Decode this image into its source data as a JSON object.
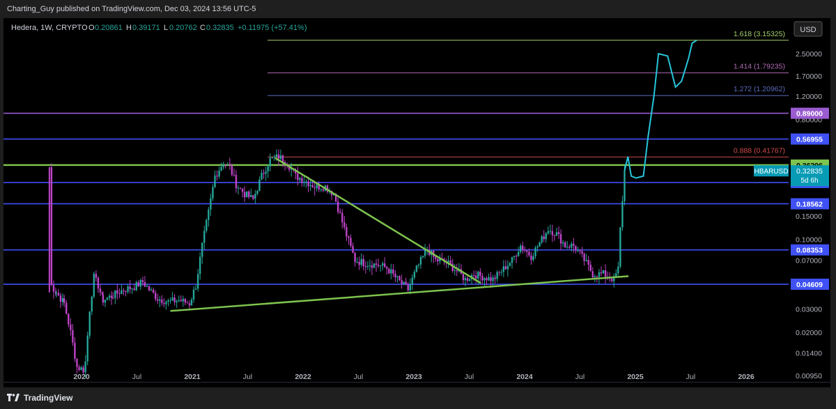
{
  "header": {
    "publish_line": "Charting_Guy published on TradingView.com, Dec 03, 2024 13:56 UTC-5"
  },
  "legend": {
    "symbol": "Hedera, 1W, CRYPTO",
    "o_label": "O",
    "o_value": "0.20861",
    "h_label": "H",
    "h_value": "0.39171",
    "l_label": "L",
    "l_value": "0.20762",
    "c_label": "C",
    "c_value": "0.32835",
    "change": "+0.11975 (+57.41%)"
  },
  "currency": "USD",
  "footer": {
    "brand": "TradingView"
  },
  "colors": {
    "green": "#26a69a",
    "magenta": "#c044c8",
    "cyan": "#26c6da",
    "trendline": "#7ec34e",
    "level_blue": "#3f51f5",
    "level_purple": "#9a5cd0",
    "fib_green": "#a5d06b",
    "fib_red": "#d04a4a",
    "price_tag": "#089bb5"
  },
  "chart_data": {
    "type": "candlestick",
    "symbol": "HBARUSD",
    "interval": "1W",
    "scale": "log",
    "ylim": [
      0.0085,
      4.2
    ],
    "x_ticks": [
      "2020",
      "Jul",
      "2021",
      "Jul",
      "2022",
      "Jul",
      "2023",
      "Jul",
      "2024",
      "Jul",
      "2025",
      "Jul",
      "2026"
    ],
    "y_ticks": [
      2.5,
      1.7,
      1.2,
      0.8,
      0.15,
      0.1,
      0.07,
      0.03,
      0.02,
      0.014,
      0.0095
    ],
    "y_tick_labels": [
      "2.50000",
      "1.70000",
      "1.20000",
      "0.80000",
      "0.15000",
      "0.10000",
      "0.07000",
      "0.03000",
      "0.02000",
      "0.01400",
      "0.00950"
    ],
    "last_price": {
      "symbol": "HBARUSD",
      "value": "0.32835",
      "countdown": "5d 6h"
    },
    "horizontal_levels": [
      {
        "value": 0.89,
        "label": "0.89000",
        "style": "purple"
      },
      {
        "value": 0.56955,
        "label": "0.56955",
        "style": "blue"
      },
      {
        "value": 0.36296,
        "label": "0.36296",
        "style": "green"
      },
      {
        "value": 0.26847,
        "label": "0.26847",
        "style": "blue"
      },
      {
        "value": 0.18562,
        "label": "0.18562",
        "style": "blue"
      },
      {
        "value": 0.08353,
        "label": "0.08353",
        "style": "blue"
      },
      {
        "value": 0.04609,
        "label": "0.04609",
        "style": "blue"
      }
    ],
    "fib_levels": [
      {
        "value": 3.15325,
        "label": "1.618 (3.15325)",
        "color": "fib_green"
      },
      {
        "value": 1.79235,
        "label": "1.414 (1.79235)",
        "color": "fib_purple"
      },
      {
        "value": 1.20962,
        "label": "1.272 (1.20962)",
        "color": "fib_blue"
      },
      {
        "value": 0.41767,
        "label": "0.888 (0.41767)",
        "color": "fib_red"
      }
    ],
    "trendlines": [
      {
        "from": [
          "2020-10-20",
          0.029
        ],
        "to": [
          "2024-12-09",
          0.053
        ],
        "label": ""
      },
      {
        "from": [
          "2021-10-01",
          0.41
        ],
        "to": [
          "2023-08-10",
          0.047
        ],
        "label": ""
      }
    ],
    "price_path": [
      [
        "2019-09-17",
        0.35
      ],
      [
        "2019-09-24",
        0.045
      ],
      [
        "2019-10-10",
        0.04
      ],
      [
        "2019-11-05",
        0.033
      ],
      [
        "2019-11-26",
        0.02
      ],
      [
        "2019-12-17",
        0.011
      ],
      [
        "2020-01-07",
        0.0105
      ],
      [
        "2020-01-14",
        0.012
      ],
      [
        "2020-01-28",
        0.03
      ],
      [
        "2020-02-11",
        0.052
      ],
      [
        "2020-02-25",
        0.045
      ],
      [
        "2020-03-12",
        0.035
      ],
      [
        "2020-04-14",
        0.038
      ],
      [
        "2020-05-19",
        0.042
      ],
      [
        "2020-06-23",
        0.044
      ],
      [
        "2020-07-21",
        0.048
      ],
      [
        "2020-08-11",
        0.042
      ],
      [
        "2020-09-08",
        0.036
      ],
      [
        "2020-10-13",
        0.034
      ],
      [
        "2020-11-17",
        0.035
      ],
      [
        "2020-12-22",
        0.033
      ],
      [
        "2021-01-12",
        0.045
      ],
      [
        "2021-02-02",
        0.09
      ],
      [
        "2021-02-23",
        0.16
      ],
      [
        "2021-03-16",
        0.3
      ],
      [
        "2021-04-13",
        0.38
      ],
      [
        "2021-05-04",
        0.35
      ],
      [
        "2021-05-25",
        0.26
      ],
      [
        "2021-06-22",
        0.22
      ],
      [
        "2021-07-20",
        0.2
      ],
      [
        "2021-08-17",
        0.3
      ],
      [
        "2021-09-14",
        0.4
      ],
      [
        "2021-10-12",
        0.42
      ],
      [
        "2021-11-09",
        0.38
      ],
      [
        "2021-12-07",
        0.3
      ],
      [
        "2022-01-04",
        0.28
      ],
      [
        "2022-02-08",
        0.25
      ],
      [
        "2022-03-15",
        0.25
      ],
      [
        "2022-04-12",
        0.22
      ],
      [
        "2022-05-17",
        0.12
      ],
      [
        "2022-06-21",
        0.07
      ],
      [
        "2022-07-26",
        0.066
      ],
      [
        "2022-08-30",
        0.065
      ],
      [
        "2022-10-04",
        0.061
      ],
      [
        "2022-11-08",
        0.05
      ],
      [
        "2022-12-13",
        0.042
      ],
      [
        "2023-01-10",
        0.06
      ],
      [
        "2023-02-14",
        0.085
      ],
      [
        "2023-03-14",
        0.07
      ],
      [
        "2023-04-18",
        0.068
      ],
      [
        "2023-05-23",
        0.058
      ],
      [
        "2023-06-20",
        0.05
      ],
      [
        "2023-07-18",
        0.055
      ],
      [
        "2023-08-22",
        0.052
      ],
      [
        "2023-09-19",
        0.05
      ],
      [
        "2023-10-24",
        0.06
      ],
      [
        "2023-11-21",
        0.07
      ],
      [
        "2023-12-19",
        0.09
      ],
      [
        "2024-01-23",
        0.075
      ],
      [
        "2024-02-27",
        0.1
      ],
      [
        "2024-03-19",
        0.12
      ],
      [
        "2024-04-16",
        0.11
      ],
      [
        "2024-05-14",
        0.09
      ],
      [
        "2024-06-11",
        0.09
      ],
      [
        "2024-07-16",
        0.07
      ],
      [
        "2024-08-13",
        0.055
      ],
      [
        "2024-09-17",
        0.055
      ],
      [
        "2024-10-22",
        0.05
      ],
      [
        "2024-11-05",
        0.06
      ],
      [
        "2024-11-12",
        0.12
      ],
      [
        "2024-11-19",
        0.2
      ],
      [
        "2024-11-26",
        0.33
      ]
    ],
    "projection": [
      [
        "2024-11-26",
        0.33
      ],
      [
        "2024-12-07",
        0.42
      ],
      [
        "2024-12-18",
        0.3
      ],
      [
        "2025-01-03",
        0.29
      ],
      [
        "2025-01-27",
        0.3
      ],
      [
        "2025-02-12",
        0.6
      ],
      [
        "2025-03-03",
        1.2
      ],
      [
        "2025-03-18",
        2.5
      ],
      [
        "2025-04-17",
        2.4
      ],
      [
        "2025-05-13",
        1.4
      ],
      [
        "2025-06-02",
        1.55
      ],
      [
        "2025-06-25",
        2.3
      ],
      [
        "2025-07-07",
        3.0
      ],
      [
        "2025-07-22",
        3.15
      ]
    ]
  }
}
